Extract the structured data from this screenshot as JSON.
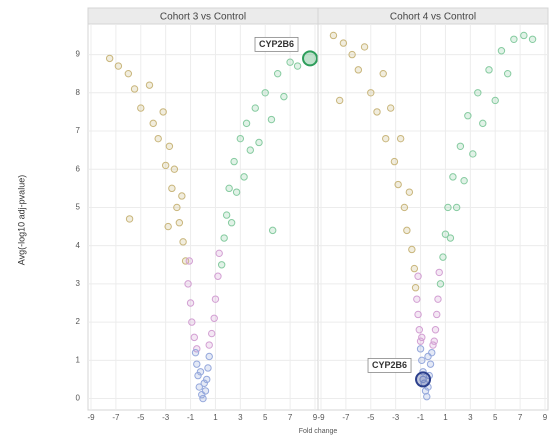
{
  "ylabel": "Avg(-log10 adj-pvalue)",
  "xlabel": "Fold change",
  "chart_data": [
    {
      "type": "scatter",
      "title": "Cohort 3 vs Control",
      "xlim": [
        -9,
        9
      ],
      "ylim": [
        -0.3,
        9.8
      ],
      "xticks": [
        -9,
        -7,
        -5,
        -3,
        -1,
        1,
        3,
        5,
        7,
        9
      ],
      "yticks": [
        0,
        1,
        2,
        3,
        4,
        5,
        6,
        7,
        8,
        9
      ],
      "grid": true,
      "series": [
        {
          "color": "#c9b67c",
          "x": [
            -7.5,
            -6.8,
            -6,
            -5.5,
            -5,
            -4.3,
            -4,
            -3.6,
            -3.2,
            -3,
            -2.7,
            -2.5,
            -2.3,
            -2.1,
            -1.9,
            -1.7,
            -1.6,
            -1.4,
            -5.9,
            -2.8
          ],
          "values": [
            8.9,
            8.7,
            8.5,
            8.1,
            7.6,
            8.2,
            7.2,
            6.8,
            7.5,
            6.1,
            6.6,
            5.5,
            6,
            5,
            4.6,
            5.3,
            4.1,
            3.6,
            4.7,
            4.5
          ]
        },
        {
          "color": "#86cba0",
          "x": [
            1.5,
            1.7,
            1.9,
            2.1,
            2.3,
            2.5,
            2.7,
            3,
            3.3,
            3.5,
            3.8,
            4.2,
            4.5,
            5,
            5.5,
            6,
            6.5,
            7,
            7.6,
            5.6
          ],
          "values": [
            3.5,
            4.2,
            4.8,
            5.5,
            4.6,
            6.2,
            5.4,
            6.8,
            5.8,
            7.2,
            6.5,
            7.6,
            6.7,
            8,
            7.3,
            8.5,
            7.9,
            8.8,
            8.7,
            4.4
          ]
        },
        {
          "color": "#d3a0d3",
          "x": [
            -1.2,
            -1,
            -0.9,
            -0.7,
            1.2,
            1,
            0.9,
            0.7,
            -1.1,
            1.3,
            -0.5,
            0.5
          ],
          "values": [
            3,
            2.5,
            2,
            1.6,
            3.2,
            2.6,
            2.1,
            1.7,
            3.6,
            3.8,
            1.3,
            1.4
          ]
        },
        {
          "color": "#95a8dc",
          "x": [
            -0.6,
            -0.5,
            -0.4,
            -0.3,
            -0.1,
            0,
            0.2,
            0.3,
            0.4,
            0.5,
            -0.2,
            0.1
          ],
          "values": [
            1.2,
            0.9,
            0.6,
            0.3,
            0.1,
            0,
            0.2,
            0.5,
            0.8,
            1.1,
            0.7,
            0.4
          ]
        }
      ],
      "annotations": [
        {
          "text": "CYP2B6",
          "x": 8.6,
          "y": 8.9,
          "color": "#2e9e5b"
        }
      ]
    },
    {
      "type": "scatter",
      "title": "Cohort 4 vs Control",
      "xlim": [
        -9,
        9
      ],
      "ylim": [
        -0.3,
        9.8
      ],
      "xticks": [
        -9,
        -7,
        -5,
        -3,
        -1,
        1,
        3,
        5,
        7,
        9
      ],
      "yticks": [
        0,
        1,
        2,
        3,
        4,
        5,
        6,
        7,
        8,
        9
      ],
      "grid": true,
      "series": [
        {
          "color": "#c9b67c",
          "x": [
            -8,
            -7.2,
            -6.5,
            -6,
            -5.5,
            -5,
            -4.5,
            -4,
            -3.8,
            -3.4,
            -3.1,
            -2.8,
            -2.6,
            -2.3,
            -2.1,
            -1.9,
            -1.7,
            -1.5,
            -7.5,
            -1.4
          ],
          "values": [
            9.5,
            9.3,
            9,
            8.6,
            9.2,
            8,
            7.5,
            8.5,
            6.8,
            7.6,
            6.2,
            5.6,
            6.8,
            5,
            4.4,
            5.4,
            3.9,
            3.4,
            7.8,
            2.9
          ]
        },
        {
          "color": "#86cba0",
          "x": [
            0.6,
            0.8,
            1,
            1.2,
            1.4,
            1.6,
            1.9,
            2.2,
            2.5,
            2.8,
            3.2,
            3.6,
            4,
            4.5,
            5,
            5.5,
            6,
            6.5,
            7.3,
            8
          ],
          "values": [
            3,
            3.7,
            4.3,
            5,
            4.2,
            5.8,
            5,
            6.6,
            5.7,
            7.4,
            6.4,
            8,
            7.2,
            8.6,
            7.8,
            9.1,
            8.5,
            9.4,
            9.5,
            9.4
          ]
        },
        {
          "color": "#d3a0d3",
          "x": [
            -1.3,
            -1.2,
            -1.1,
            -1,
            0.4,
            0.3,
            0.2,
            0.1,
            -1.2,
            0.5,
            -0.9,
            0
          ],
          "values": [
            2.6,
            2.2,
            1.8,
            1.5,
            2.6,
            2.2,
            1.8,
            1.5,
            3.2,
            3.3,
            1.6,
            1.4
          ]
        },
        {
          "color": "#95a8dc",
          "x": [
            -1,
            -0.9,
            -0.8,
            -0.7,
            -0.6,
            -0.5,
            -0.4,
            -0.3,
            -0.2,
            -0.1,
            -0.8,
            -0.4
          ],
          "values": [
            1.3,
            1,
            0.7,
            0.4,
            0.2,
            0.05,
            0.3,
            0.6,
            0.9,
            1.2,
            0.5,
            1.1
          ]
        }
      ],
      "annotations": [
        {
          "text": "CYP2B6",
          "x": -0.8,
          "y": 0.5,
          "color": "#2b3f8c"
        }
      ]
    }
  ]
}
